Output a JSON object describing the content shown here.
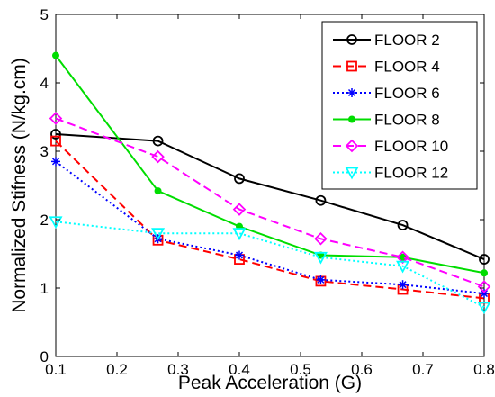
{
  "chart_data": {
    "type": "line",
    "title": "",
    "xlabel": "Peak Acceleration (G)",
    "ylabel": "Normalized Stifness (N/kg.cm)",
    "xlim": [
      0.1,
      0.8
    ],
    "ylim": [
      0,
      5
    ],
    "xticks": [
      "0.1",
      "0.2",
      "0.3",
      "0.4",
      "0.5",
      "0.6",
      "0.7",
      "0.8"
    ],
    "yticks": [
      "0",
      "1",
      "2",
      "3",
      "4",
      "5"
    ],
    "grid": false,
    "legend_position": "top-right",
    "x": [
      0.1,
      0.267,
      0.4,
      0.533,
      0.667,
      0.8
    ],
    "series": [
      {
        "name": "FLOOR 2",
        "values": [
          3.25,
          3.15,
          2.6,
          2.28,
          1.92,
          1.42
        ],
        "color": "#000000",
        "dash": "solid",
        "marker": "circle"
      },
      {
        "name": "FLOOR 4",
        "values": [
          3.15,
          1.7,
          1.42,
          1.1,
          0.98,
          0.85
        ],
        "color": "#ff0000",
        "dash": "dashed",
        "marker": "square"
      },
      {
        "name": "FLOOR 6",
        "values": [
          2.85,
          1.72,
          1.48,
          1.12,
          1.05,
          0.92
        ],
        "color": "#0000ff",
        "dash": "dotted",
        "marker": "star"
      },
      {
        "name": "FLOOR 8",
        "values": [
          4.4,
          2.42,
          1.9,
          1.48,
          1.45,
          1.22
        ],
        "color": "#00dd00",
        "dash": "solid",
        "marker": "dot"
      },
      {
        "name": "FLOOR 10",
        "values": [
          3.48,
          2.92,
          2.15,
          1.72,
          1.45,
          1.02
        ],
        "color": "#ff00ff",
        "dash": "dashed",
        "marker": "diamond"
      },
      {
        "name": "FLOOR 12",
        "values": [
          1.97,
          1.8,
          1.8,
          1.45,
          1.32,
          0.72
        ],
        "color": "#00ffff",
        "dash": "dotted",
        "marker": "triangle-down"
      }
    ]
  }
}
